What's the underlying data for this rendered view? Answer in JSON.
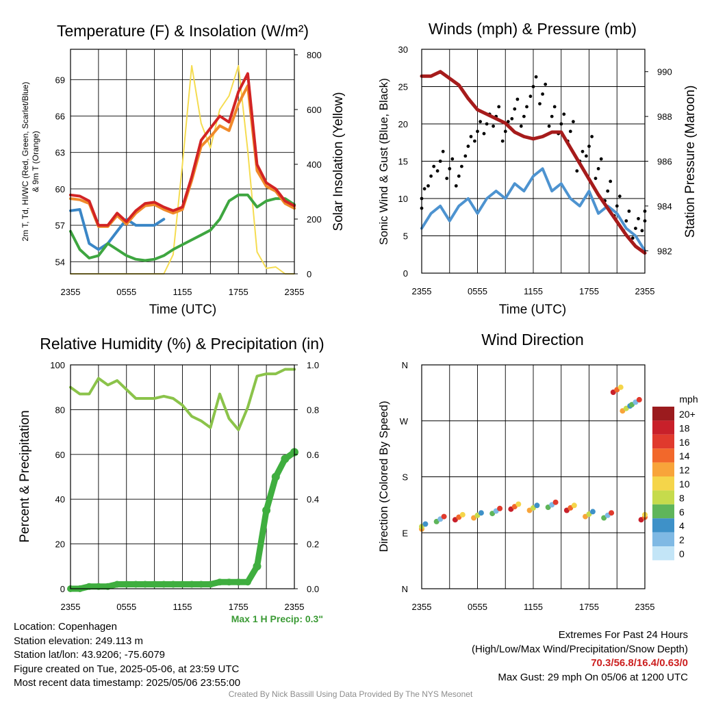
{
  "panels": {
    "temp": {
      "title": "Temperature (F) & Insolation (W/m²)",
      "ylabel_left_1": "2m T, Td, HI/WC (Red, Green, Scarlet/Blue)",
      "ylabel_left_2": "& 9m T (Orange)",
      "ylabel_right": "Solar Insolation (Yellow)",
      "xlabel": "Time (UTC)",
      "yticks_left": [
        "54",
        "57",
        "60",
        "63",
        "66",
        "69"
      ],
      "yticks_right": [
        "0",
        "200",
        "400",
        "600",
        "800"
      ],
      "xticks": [
        "2355",
        "0555",
        "1155",
        "1755",
        "2355"
      ]
    },
    "wind": {
      "title": "Winds (mph) & Pressure (mb)",
      "ylabel_left": "Sonic Wind & Gust (Blue, Black)",
      "ylabel_right": "Station Pressure (Maroon)",
      "xlabel": "Time (UTC)",
      "yticks_left": [
        "0",
        "5",
        "10",
        "15",
        "20",
        "25",
        "30"
      ],
      "yticks_right": [
        "982",
        "984",
        "986",
        "988",
        "990"
      ],
      "xticks": [
        "2355",
        "0555",
        "1155",
        "1755",
        "2355"
      ]
    },
    "rh": {
      "title": "Relative Humidity (%) & Precipitation (in)",
      "ylabel_left": "Percent & Precipitation",
      "yticks_left": [
        "0",
        "20",
        "40",
        "60",
        "80",
        "100"
      ],
      "yticks_right": [
        "0.0",
        "0.2",
        "0.4",
        "0.6",
        "0.8",
        "1.0"
      ],
      "xticks": [
        "2355",
        "0555",
        "1155",
        "1755",
        "2355"
      ],
      "max_precip": "Max 1 H Precip: 0.3\""
    },
    "dir": {
      "title": "Wind Direction",
      "ylabel_left": "Direction (Colored By Speed)",
      "yticks_left": [
        "N",
        "E",
        "S",
        "W",
        "N"
      ],
      "xticks": [
        "2355",
        "0555",
        "1155",
        "1755",
        "2355"
      ],
      "legend_title": "mph",
      "legend_labels": [
        "20+",
        "18",
        "16",
        "14",
        "12",
        "10",
        "8",
        "6",
        "4",
        "2",
        "0"
      ],
      "legend_colors": [
        "#9b1b1e",
        "#c8202a",
        "#e03a2d",
        "#f2682b",
        "#f8a43a",
        "#f5d54a",
        "#c6db4c",
        "#5fb55a",
        "#3e91c8",
        "#7fb9e4",
        "#c3e5f7"
      ]
    }
  },
  "footer": {
    "location": "Location: Copenhagen",
    "elevation": "Station elevation: 249.113 m",
    "latlon": "Station lat/lon: 43.9206; -75.6079",
    "created": "Figure created on Tue, 2025-05-06, at 23:59 UTC",
    "recent": "Most recent data timestamp: 2025/05/06 23:55:00",
    "extremes_title": "Extremes For Past 24 Hours",
    "extremes_sub": "(High/Low/Max Wind/Precipitation/Snow Depth)",
    "extremes_values": "70.3/56.8/16.4/0.63/0",
    "max_gust": "Max Gust: 29 mph On 05/06 at 1200 UTC",
    "credit": "Created By Nick Bassill Using Data Provided By The NYS Mesonet"
  },
  "colors": {
    "temp": "#d22424",
    "temp9m": "#f08a2a",
    "dewpoint": "#3ea640",
    "windchill": "#3a86c6",
    "solar": "#f5dc50",
    "wind": "#4d93d0",
    "gust": "#000000",
    "pressure": "#a61b1b",
    "rh": "#8bc34a",
    "precip": "#3fae3f"
  },
  "chart_data": [
    {
      "type": "line",
      "title": "Temperature (F) & Insolation (W/m²)",
      "x_hours_since_2355": [
        0,
        1,
        2,
        3,
        4,
        5,
        6,
        7,
        8,
        9,
        10,
        11,
        12,
        13,
        14,
        15,
        16,
        17,
        18,
        19,
        20,
        21,
        22,
        23,
        24
      ],
      "series": [
        {
          "name": "2m T",
          "y": [
            59.5,
            59.4,
            59.0,
            57.0,
            57.0,
            58.0,
            57.3,
            58.2,
            58.8,
            58.9,
            58.5,
            58.2,
            58.5,
            61.0,
            64.0,
            65.0,
            66.0,
            65.5,
            68.0,
            69.5,
            62.0,
            60.5,
            60.0,
            59.0,
            58.6
          ]
        },
        {
          "name": "9m T",
          "y": [
            59.2,
            59.1,
            58.8,
            56.9,
            56.9,
            57.8,
            57.1,
            58.0,
            58.6,
            58.7,
            58.3,
            58.0,
            58.3,
            60.7,
            63.5,
            64.3,
            65.2,
            64.8,
            67.0,
            68.5,
            61.5,
            60.2,
            59.8,
            58.8,
            58.4
          ]
        },
        {
          "name": "Td",
          "y": [
            56.5,
            55.0,
            54.3,
            54.5,
            55.5,
            55.0,
            54.5,
            54.2,
            54.1,
            54.2,
            54.5,
            55.0,
            55.4,
            55.8,
            56.2,
            56.6,
            57.5,
            59.0,
            59.5,
            59.5,
            58.5,
            59.0,
            59.2,
            59.2,
            58.7
          ]
        },
        {
          "name": "HI/WC",
          "y": [
            58.2,
            58.3,
            55.5,
            55.0,
            55.5,
            56.5,
            57.5,
            57.0,
            57.0,
            57.0,
            57.5
          ]
        },
        {
          "name": "Solar",
          "y": [
            0,
            0,
            0,
            0,
            0,
            0,
            0,
            0,
            0,
            0,
            0,
            70,
            400,
            760,
            550,
            460,
            600,
            650,
            760,
            450,
            80,
            20,
            25,
            0,
            0
          ]
        }
      ],
      "ylim_left": [
        53,
        71.5
      ],
      "ylim_right": [
        0,
        820
      ]
    },
    {
      "type": "line",
      "title": "Winds (mph) & Pressure (mb)",
      "x_hours_since_2355": [
        0,
        1,
        2,
        3,
        4,
        5,
        6,
        7,
        8,
        9,
        10,
        11,
        12,
        13,
        14,
        15,
        16,
        17,
        18,
        19,
        20,
        21,
        22,
        23,
        24
      ],
      "series": [
        {
          "name": "Sonic Wind",
          "y": [
            6,
            8,
            9,
            7,
            9,
            10,
            8,
            10,
            11,
            10,
            12,
            11,
            13,
            14,
            11,
            12,
            10,
            9,
            11,
            8,
            9,
            8,
            6,
            5,
            3
          ]
        },
        {
          "name": "Gust",
          "y": [
            10,
            13,
            15,
            14,
            13,
            17,
            19,
            20,
            21,
            19,
            22,
            21,
            25,
            24,
            21,
            20,
            19,
            15,
            17,
            14,
            11,
            9,
            7,
            6,
            7
          ]
        },
        {
          "name": "Pressure",
          "y": [
            989.8,
            989.8,
            990.0,
            989.7,
            989.4,
            988.8,
            988.3,
            988.1,
            987.9,
            987.7,
            987.3,
            987.1,
            987.0,
            987.1,
            987.3,
            987.3,
            986.6,
            985.9,
            985.2,
            984.5,
            983.9,
            983.3,
            982.7,
            982.2,
            981.9
          ]
        }
      ],
      "ylim_left": [
        0,
        30
      ],
      "ylim_right": [
        981,
        991
      ]
    },
    {
      "type": "line",
      "title": "Relative Humidity (%) & Precipitation (in)",
      "x_hours_since_2355": [
        0,
        1,
        2,
        3,
        4,
        5,
        6,
        7,
        8,
        9,
        10,
        11,
        12,
        13,
        14,
        15,
        16,
        17,
        18,
        19,
        20,
        21,
        22,
        23,
        24
      ],
      "series": [
        {
          "name": "RH",
          "y": [
            90,
            87,
            87,
            94,
            91,
            93,
            89,
            85,
            85,
            85,
            86,
            85,
            82,
            77,
            75,
            72,
            87,
            76,
            71,
            81,
            95,
            96,
            96,
            98,
            98
          ]
        },
        {
          "name": "Precipitation",
          "y": [
            0.0,
            0.0,
            0.01,
            0.01,
            0.01,
            0.02,
            0.02,
            0.02,
            0.02,
            0.02,
            0.02,
            0.02,
            0.02,
            0.02,
            0.02,
            0.02,
            0.03,
            0.03,
            0.03,
            0.03,
            0.1,
            0.35,
            0.5,
            0.58,
            0.61
          ]
        }
      ],
      "ylim_left": [
        0,
        100
      ],
      "ylim_right": [
        0,
        1.0
      ]
    },
    {
      "type": "scatter",
      "title": "Wind Direction",
      "x_hours_since_2355": [
        0,
        2,
        4,
        6,
        8,
        10,
        12,
        14,
        16,
        18,
        20,
        21,
        22,
        23,
        24
      ],
      "series": [
        {
          "name": "Direction (deg)",
          "y": [
            100,
            112,
            115,
            118,
            125,
            132,
            130,
            135,
            130,
            120,
            118,
            320,
            290,
            300,
            115
          ]
        }
      ],
      "ylim": [
        0,
        360
      ]
    }
  ]
}
